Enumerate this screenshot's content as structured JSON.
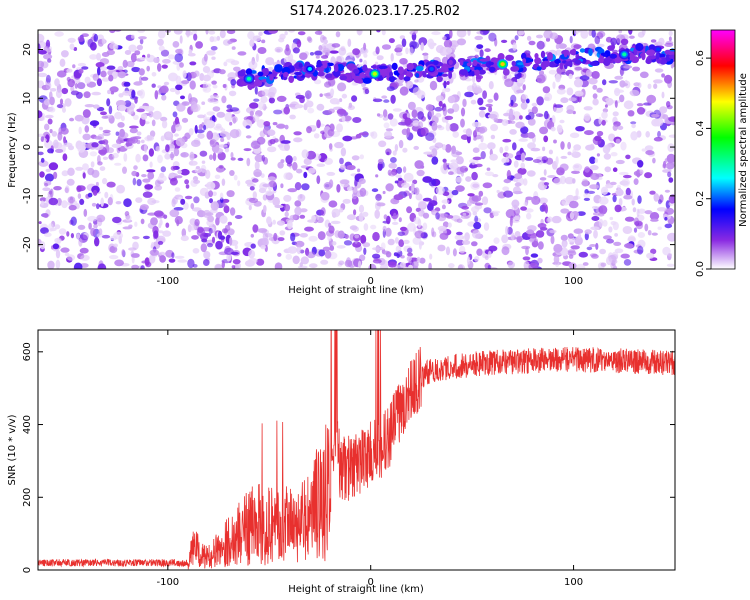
{
  "title": "S174.2026.023.17.25.R02",
  "chart_data": [
    {
      "type": "heatmap",
      "xlabel": "Height of straight line (km)",
      "ylabel": "Frequency (Hz)",
      "xlim": [
        -164,
        150
      ],
      "ylim": [
        -25,
        24
      ],
      "xticks": [
        -100,
        0,
        100
      ],
      "yticks": [
        -20,
        -10,
        0,
        10,
        20
      ],
      "xtick_labels": [
        "-100",
        "0",
        "100"
      ],
      "ytick_labels": [
        "-20",
        "-10",
        "0",
        "10",
        "20"
      ],
      "colorbar": {
        "label": "Normalized spectral amplitude",
        "range": [
          0.0,
          0.68
        ],
        "ticks": [
          0.0,
          0.2,
          0.4,
          0.6
        ],
        "tick_labels": [
          "0.0",
          "0.2",
          "0.4",
          "0.6"
        ],
        "colors": [
          "#ffffff",
          "#8a2be2",
          "#0000ff",
          "#00ffff",
          "#00ff00",
          "#ffff00",
          "#ff0000",
          "#ff00ff"
        ]
      },
      "signal_track": [
        {
          "x": -60,
          "y": 14,
          "amp": 0.3
        },
        {
          "x": -30,
          "y": 16,
          "amp": 0.25
        },
        {
          "x": 2,
          "y": 15,
          "amp": 0.45
        },
        {
          "x": 30,
          "y": 16,
          "amp": 0.2
        },
        {
          "x": 65,
          "y": 17,
          "amp": 0.5
        },
        {
          "x": 125,
          "y": 19,
          "amp": 0.3
        }
      ]
    },
    {
      "type": "line",
      "xlabel": "Height of straight line (km)",
      "ylabel": "SNR (10 * v/v)",
      "xlim": [
        -164,
        150
      ],
      "ylim": [
        0,
        660
      ],
      "xticks": [
        -100,
        0,
        100
      ],
      "yticks": [
        0,
        200,
        400,
        600
      ],
      "xtick_labels": [
        "-100",
        "0",
        "100"
      ],
      "ytick_labels": [
        "0",
        "200",
        "400",
        "600"
      ],
      "color": "#e8302e",
      "series": [
        {
          "x": [
            -164,
            -120,
            -90,
            -87,
            -84,
            -80,
            -70,
            -60,
            -50,
            -40,
            -30,
            -25,
            -20,
            -18,
            -15,
            -10,
            -5,
            0,
            5,
            10,
            15,
            20,
            25,
            30,
            40,
            60,
            80,
            100,
            120,
            150
          ],
          "y": [
            20,
            20,
            20,
            70,
            40,
            35,
            80,
            120,
            130,
            120,
            140,
            200,
            220,
            380,
            280,
            280,
            300,
            320,
            330,
            380,
            450,
            500,
            530,
            550,
            560,
            570,
            575,
            580,
            575,
            570
          ]
        }
      ]
    }
  ]
}
